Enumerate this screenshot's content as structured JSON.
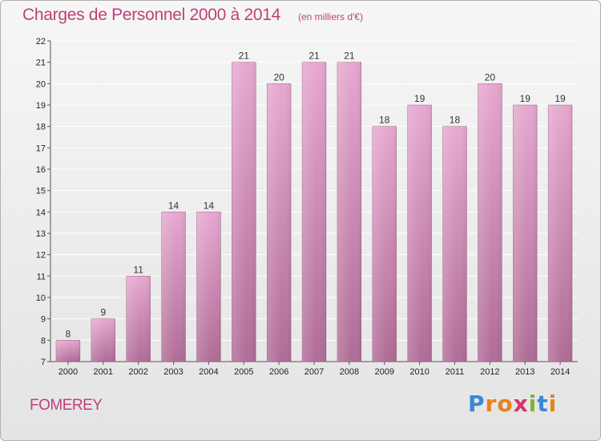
{
  "header": {
    "title": "Charges de Personnel 2000 à 2014",
    "unit": "(en milliers d'€)"
  },
  "footer": {
    "town": "FOMEREY",
    "logo_letters": [
      "P",
      "r",
      "o",
      "x",
      "i",
      "t",
      "i"
    ],
    "logo_colors": [
      "#3a87d6",
      "#e8821e",
      "#e8821e",
      "#d6336c",
      "#7db33a",
      "#3a87d6",
      "#e8821e"
    ]
  },
  "colors": {
    "accent": "#c0407a",
    "bar_top": "#e6a8d0",
    "bar_bottom": "#b06c96"
  },
  "chart_data": {
    "type": "bar",
    "title": "Charges de Personnel 2000 à 2014",
    "categories": [
      "2000",
      "2001",
      "2002",
      "2003",
      "2004",
      "2005",
      "2006",
      "2007",
      "2008",
      "2009",
      "2010",
      "2011",
      "2012",
      "2013",
      "2014"
    ],
    "values": [
      8,
      9,
      11,
      14,
      14,
      21,
      20,
      21,
      21,
      18,
      19,
      18,
      20,
      19,
      19
    ],
    "data_labels": [
      "8",
      "9",
      "11",
      "14",
      "14",
      "21",
      "20",
      "21",
      "21",
      "18",
      "19",
      "18",
      "20",
      "19",
      "19"
    ],
    "ylim": [
      7,
      22
    ],
    "yticks": [
      "7",
      "8",
      "9",
      "10",
      "11",
      "12",
      "13",
      "14",
      "15",
      "16",
      "17",
      "18",
      "19",
      "20",
      "21",
      "22"
    ],
    "grid": true,
    "xlabel": "",
    "ylabel": ""
  }
}
